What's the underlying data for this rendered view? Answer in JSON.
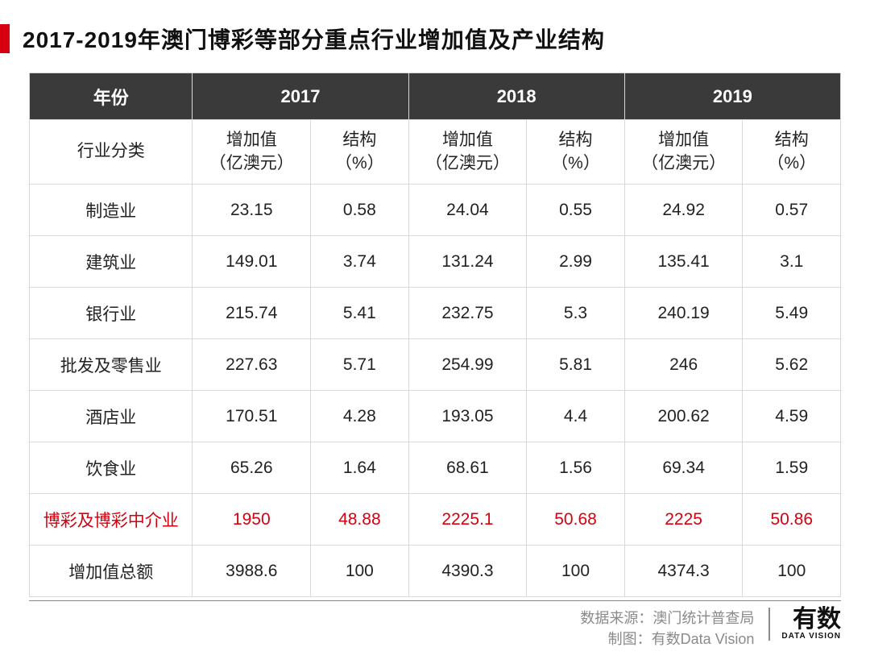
{
  "title": "2017-2019年澳门博彩等部分重点行业增加值及产业结构",
  "table": {
    "header_year_label": "年份",
    "years": [
      "2017",
      "2018",
      "2019"
    ],
    "category_label": "行业分类",
    "value_label": "增加值\n（亿澳元）",
    "pct_label": "结构\n（%）",
    "rows": [
      {
        "name": "制造业",
        "v17": "23.15",
        "p17": "0.58",
        "v18": "24.04",
        "p18": "0.55",
        "v19": "24.92",
        "p19": "0.57",
        "highlight": false
      },
      {
        "name": "建筑业",
        "v17": "149.01",
        "p17": "3.74",
        "v18": "131.24",
        "p18": "2.99",
        "v19": "135.41",
        "p19": "3.1",
        "highlight": false
      },
      {
        "name": "银行业",
        "v17": "215.74",
        "p17": "5.41",
        "v18": "232.75",
        "p18": "5.3",
        "v19": "240.19",
        "p19": "5.49",
        "highlight": false
      },
      {
        "name": "批发及零售业",
        "v17": "227.63",
        "p17": "5.71",
        "v18": "254.99",
        "p18": "5.81",
        "v19": "246",
        "p19": "5.62",
        "highlight": false
      },
      {
        "name": "酒店业",
        "v17": "170.51",
        "p17": "4.28",
        "v18": "193.05",
        "p18": "4.4",
        "v19": "200.62",
        "p19": "4.59",
        "highlight": false
      },
      {
        "name": "饮食业",
        "v17": "65.26",
        "p17": "1.64",
        "v18": "68.61",
        "p18": "1.56",
        "v19": "69.34",
        "p19": "1.59",
        "highlight": false
      },
      {
        "name": "博彩及博彩中介业",
        "v17": "1950",
        "p17": "48.88",
        "v18": "2225.1",
        "p18": "50.68",
        "v19": "2225",
        "p19": "50.86",
        "highlight": true
      },
      {
        "name": "增加值总额",
        "v17": "3988.6",
        "p17": "100",
        "v18": "4390.3",
        "p18": "100",
        "v19": "4374.3",
        "p19": "100",
        "highlight": false
      }
    ],
    "colors": {
      "header_bg": "#3a3a3a",
      "header_fg": "#ffffff",
      "border": "#d9d9d9",
      "highlight_fg": "#d7000f",
      "text": "#222222"
    }
  },
  "footer": {
    "source_label": "数据来源：",
    "source_value": "澳门统计普查局",
    "credit_label": "制图：",
    "credit_value": "有数Data Vision",
    "brand_main": "有数",
    "brand_sub": "DATA VISION"
  }
}
